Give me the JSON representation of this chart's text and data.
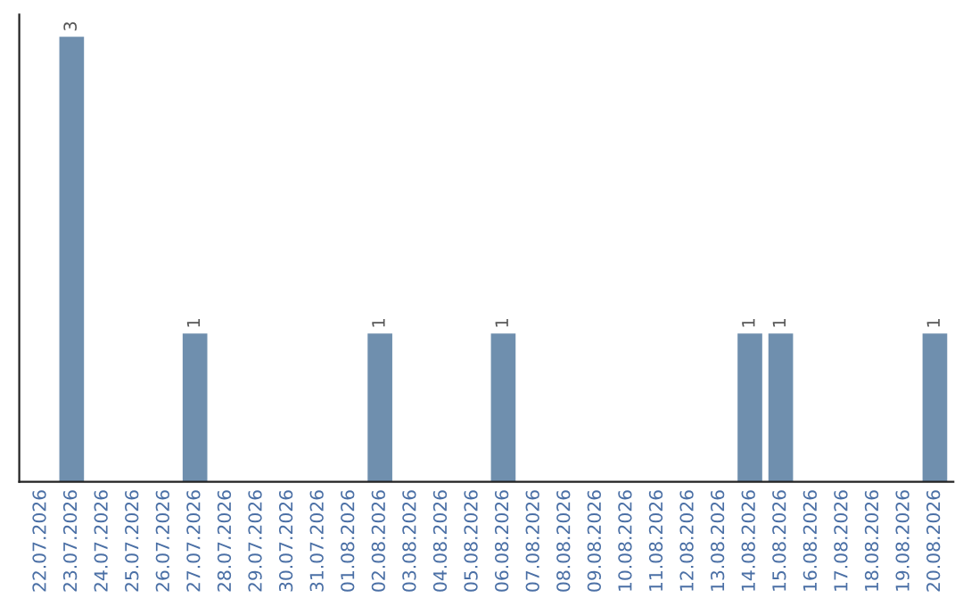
{
  "chart_data": {
    "type": "bar",
    "categories": [
      "22.07.2026",
      "23.07.2026",
      "24.07.2026",
      "25.07.2026",
      "26.07.2026",
      "27.07.2026",
      "28.07.2026",
      "29.07.2026",
      "30.07.2026",
      "31.07.2026",
      "01.08.2026",
      "02.08.2026",
      "03.08.2026",
      "04.08.2026",
      "05.08.2026",
      "06.08.2026",
      "07.08.2026",
      "08.08.2026",
      "09.08.2026",
      "10.08.2026",
      "11.08.2026",
      "12.08.2026",
      "13.08.2026",
      "14.08.2026",
      "15.08.2026",
      "16.08.2026",
      "17.08.2026",
      "18.08.2026",
      "19.08.2026",
      "20.08.2026"
    ],
    "values": [
      0,
      3,
      0,
      0,
      0,
      1,
      0,
      0,
      0,
      0,
      0,
      1,
      0,
      0,
      0,
      1,
      0,
      0,
      0,
      0,
      0,
      0,
      0,
      1,
      1,
      0,
      0,
      0,
      0,
      1
    ],
    "value_labels": [
      null,
      "3",
      null,
      null,
      null,
      "1",
      null,
      null,
      null,
      null,
      null,
      "1",
      null,
      null,
      null,
      "1",
      null,
      null,
      null,
      null,
      null,
      null,
      null,
      "1",
      "1",
      null,
      null,
      null,
      null,
      "1"
    ],
    "color": "#6f8fae",
    "tick_labels": "x",
    "grid": false,
    "legend": false
  }
}
